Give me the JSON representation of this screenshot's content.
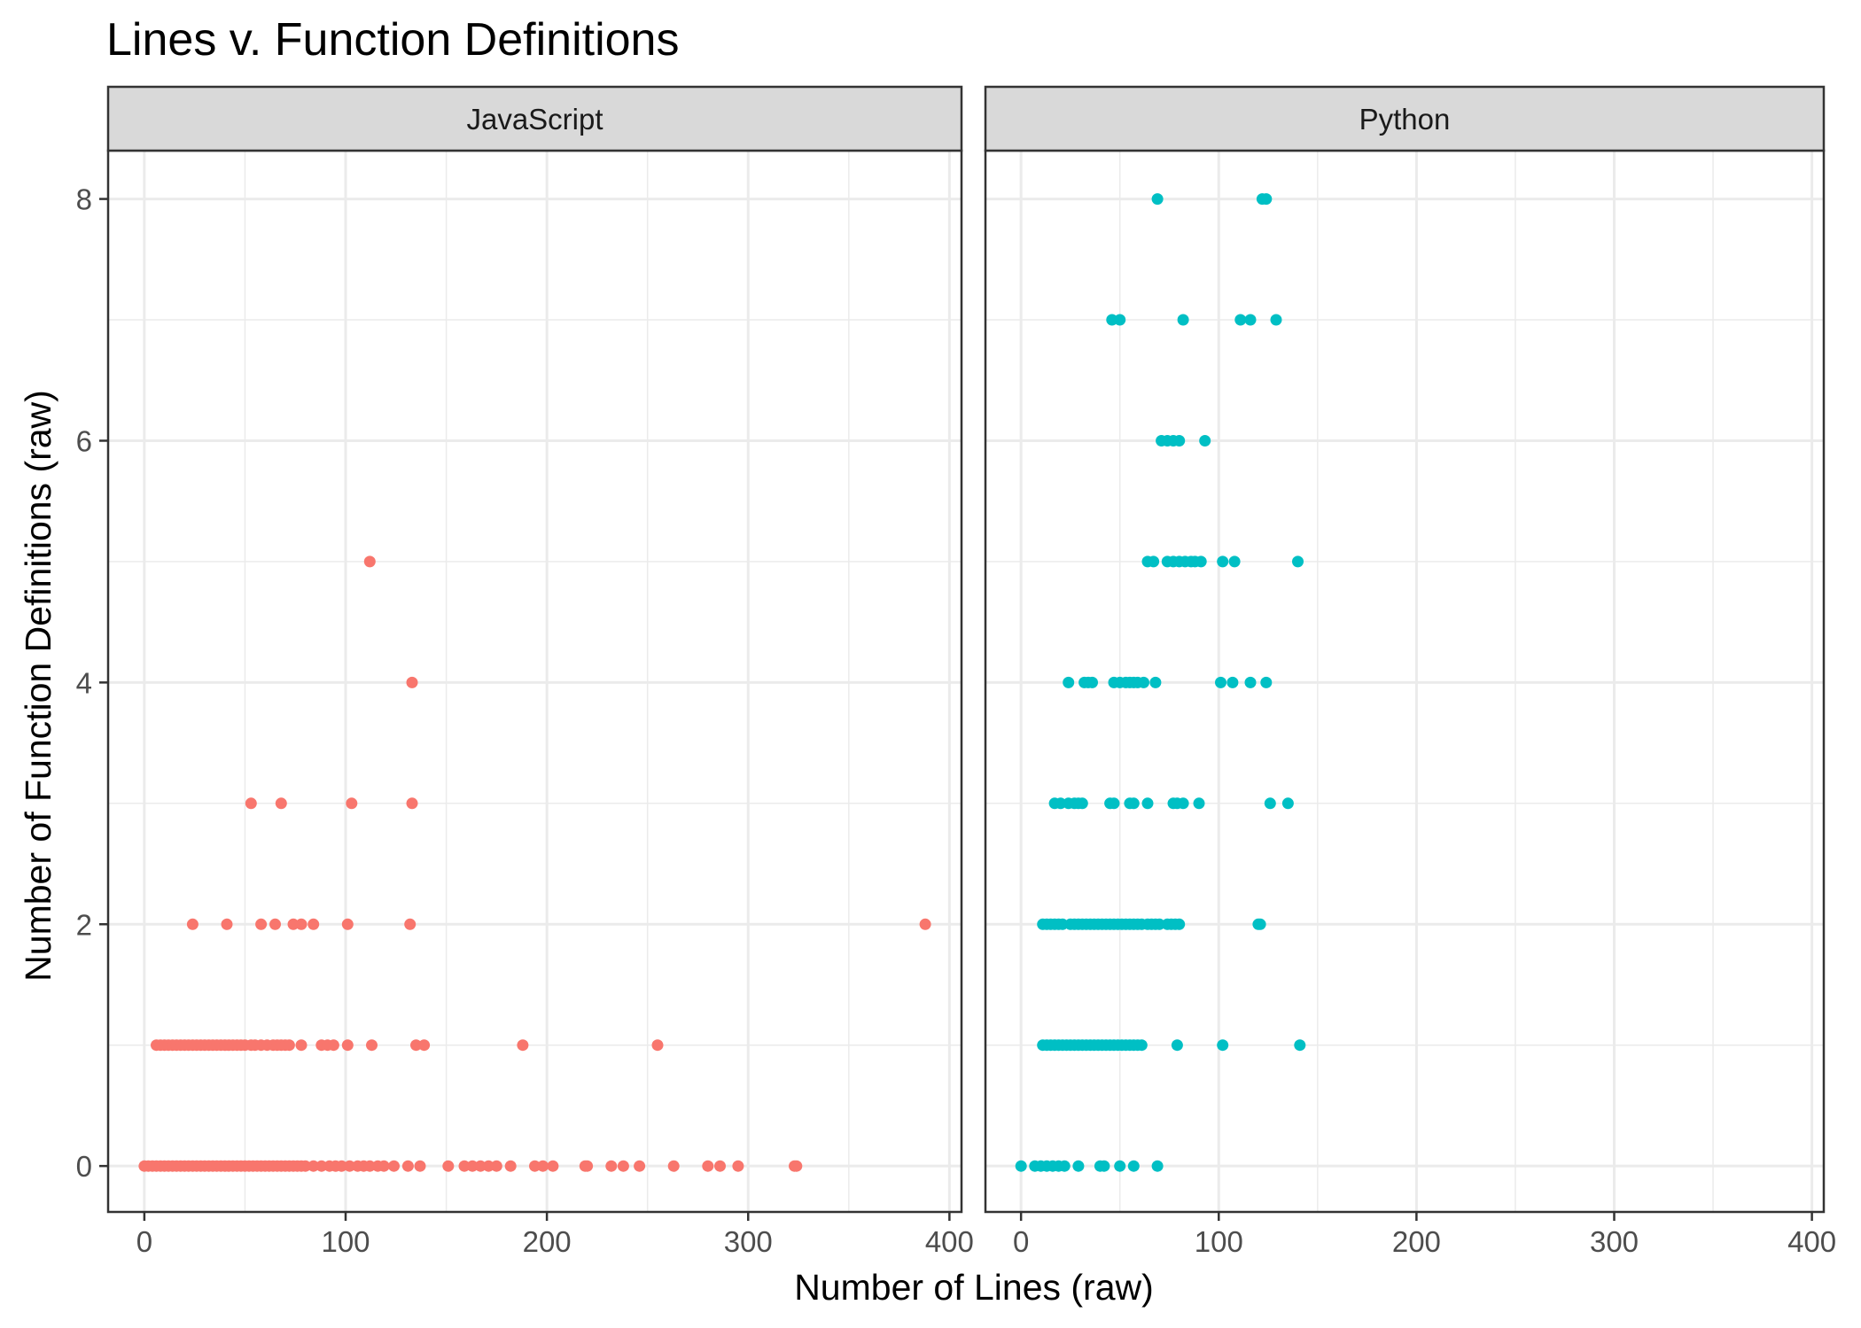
{
  "chart_data": {
    "type": "scatter",
    "title": "Lines v. Function Definitions",
    "xlabel": "Number of Lines (raw)",
    "ylabel": "Number of Function Definitions (raw)",
    "xlim": [
      -18,
      406
    ],
    "ylim": [
      -0.38,
      8.4
    ],
    "x_ticks": [
      "0",
      "100",
      "200",
      "300",
      "400"
    ],
    "y_ticks": [
      "0",
      "2",
      "4",
      "6",
      "8"
    ],
    "grid": true,
    "facets": [
      {
        "name": "JavaScript",
        "color": "#F8766D",
        "points": [
          [
            0,
            0
          ],
          [
            2,
            0
          ],
          [
            4,
            0
          ],
          [
            6,
            0
          ],
          [
            8,
            0
          ],
          [
            10,
            0
          ],
          [
            12,
            0
          ],
          [
            14,
            0
          ],
          [
            16,
            0
          ],
          [
            18,
            0
          ],
          [
            20,
            0
          ],
          [
            22,
            0
          ],
          [
            24,
            0
          ],
          [
            26,
            0
          ],
          [
            28,
            0
          ],
          [
            30,
            0
          ],
          [
            32,
            0
          ],
          [
            34,
            0
          ],
          [
            36,
            0
          ],
          [
            38,
            0
          ],
          [
            40,
            0
          ],
          [
            42,
            0
          ],
          [
            44,
            0
          ],
          [
            46,
            0
          ],
          [
            48,
            0
          ],
          [
            50,
            0
          ],
          [
            52,
            0
          ],
          [
            54,
            0
          ],
          [
            56,
            0
          ],
          [
            58,
            0
          ],
          [
            60,
            0
          ],
          [
            62,
            0
          ],
          [
            64,
            0
          ],
          [
            66,
            0
          ],
          [
            68,
            0
          ],
          [
            70,
            0
          ],
          [
            72,
            0
          ],
          [
            74,
            0
          ],
          [
            76,
            0
          ],
          [
            78,
            0
          ],
          [
            80,
            0
          ],
          [
            84,
            0
          ],
          [
            88,
            0
          ],
          [
            92,
            0
          ],
          [
            95,
            0
          ],
          [
            98,
            0
          ],
          [
            102,
            0
          ],
          [
            106,
            0
          ],
          [
            109,
            0
          ],
          [
            112,
            0
          ],
          [
            116,
            0
          ],
          [
            119,
            0
          ],
          [
            124,
            0
          ],
          [
            131,
            0
          ],
          [
            137,
            0
          ],
          [
            151,
            0
          ],
          [
            159,
            0
          ],
          [
            163,
            0
          ],
          [
            167,
            0
          ],
          [
            171,
            0
          ],
          [
            175,
            0
          ],
          [
            182,
            0
          ],
          [
            194,
            0
          ],
          [
            198,
            0
          ],
          [
            203,
            0
          ],
          [
            219,
            0
          ],
          [
            220,
            0
          ],
          [
            232,
            0
          ],
          [
            238,
            0
          ],
          [
            246,
            0
          ],
          [
            263,
            0
          ],
          [
            280,
            0
          ],
          [
            286,
            0
          ],
          [
            295,
            0
          ],
          [
            323,
            0
          ],
          [
            324,
            0
          ],
          [
            6,
            1
          ],
          [
            8,
            1
          ],
          [
            10,
            1
          ],
          [
            12,
            1
          ],
          [
            14,
            1
          ],
          [
            16,
            1
          ],
          [
            18,
            1
          ],
          [
            20,
            1
          ],
          [
            22,
            1
          ],
          [
            24,
            1
          ],
          [
            26,
            1
          ],
          [
            28,
            1
          ],
          [
            30,
            1
          ],
          [
            32,
            1
          ],
          [
            34,
            1
          ],
          [
            36,
            1
          ],
          [
            38,
            1
          ],
          [
            40,
            1
          ],
          [
            42,
            1
          ],
          [
            44,
            1
          ],
          [
            46,
            1
          ],
          [
            48,
            1
          ],
          [
            50,
            1
          ],
          [
            53,
            1
          ],
          [
            55,
            1
          ],
          [
            58,
            1
          ],
          [
            61,
            1
          ],
          [
            64,
            1
          ],
          [
            66,
            1
          ],
          [
            68,
            1
          ],
          [
            70,
            1
          ],
          [
            72,
            1
          ],
          [
            78,
            1
          ],
          [
            88,
            1
          ],
          [
            91,
            1
          ],
          [
            94,
            1
          ],
          [
            101,
            1
          ],
          [
            113,
            1
          ],
          [
            135,
            1
          ],
          [
            139,
            1
          ],
          [
            188,
            1
          ],
          [
            255,
            1
          ],
          [
            24,
            2
          ],
          [
            41,
            2
          ],
          [
            58,
            2
          ],
          [
            65,
            2
          ],
          [
            74,
            2
          ],
          [
            78,
            2
          ],
          [
            84,
            2
          ],
          [
            101,
            2
          ],
          [
            132,
            2
          ],
          [
            388,
            2
          ],
          [
            53,
            3
          ],
          [
            68,
            3
          ],
          [
            103,
            3
          ],
          [
            133,
            3
          ],
          [
            133,
            4
          ],
          [
            112,
            5
          ]
        ]
      },
      {
        "name": "Python",
        "color": "#00BFC4",
        "points": [
          [
            0,
            0
          ],
          [
            7,
            0
          ],
          [
            10,
            0
          ],
          [
            13,
            0
          ],
          [
            16,
            0
          ],
          [
            19,
            0
          ],
          [
            22,
            0
          ],
          [
            29,
            0
          ],
          [
            40,
            0
          ],
          [
            42,
            0
          ],
          [
            50,
            0
          ],
          [
            57,
            0
          ],
          [
            69,
            0
          ],
          [
            11,
            1
          ],
          [
            13,
            1
          ],
          [
            15,
            1
          ],
          [
            17,
            1
          ],
          [
            19,
            1
          ],
          [
            21,
            1
          ],
          [
            23,
            1
          ],
          [
            25,
            1
          ],
          [
            27,
            1
          ],
          [
            29,
            1
          ],
          [
            31,
            1
          ],
          [
            33,
            1
          ],
          [
            35,
            1
          ],
          [
            37,
            1
          ],
          [
            39,
            1
          ],
          [
            41,
            1
          ],
          [
            43,
            1
          ],
          [
            45,
            1
          ],
          [
            47,
            1
          ],
          [
            49,
            1
          ],
          [
            51,
            1
          ],
          [
            53,
            1
          ],
          [
            55,
            1
          ],
          [
            57,
            1
          ],
          [
            59,
            1
          ],
          [
            61,
            1
          ],
          [
            79,
            1
          ],
          [
            102,
            1
          ],
          [
            141,
            1
          ],
          [
            11,
            2
          ],
          [
            13,
            2
          ],
          [
            15,
            2
          ],
          [
            17,
            2
          ],
          [
            19,
            2
          ],
          [
            21,
            2
          ],
          [
            25,
            2
          ],
          [
            27,
            2
          ],
          [
            29,
            2
          ],
          [
            31,
            2
          ],
          [
            33,
            2
          ],
          [
            35,
            2
          ],
          [
            37,
            2
          ],
          [
            39,
            2
          ],
          [
            41,
            2
          ],
          [
            43,
            2
          ],
          [
            45,
            2
          ],
          [
            47,
            2
          ],
          [
            49,
            2
          ],
          [
            51,
            2
          ],
          [
            53,
            2
          ],
          [
            55,
            2
          ],
          [
            57,
            2
          ],
          [
            59,
            2
          ],
          [
            61,
            2
          ],
          [
            64,
            2
          ],
          [
            66,
            2
          ],
          [
            68,
            2
          ],
          [
            70,
            2
          ],
          [
            74,
            2
          ],
          [
            76,
            2
          ],
          [
            78,
            2
          ],
          [
            80,
            2
          ],
          [
            120,
            2
          ],
          [
            121,
            2
          ],
          [
            17,
            3
          ],
          [
            20,
            3
          ],
          [
            24,
            3
          ],
          [
            27,
            3
          ],
          [
            29,
            3
          ],
          [
            31,
            3
          ],
          [
            45,
            3
          ],
          [
            47,
            3
          ],
          [
            55,
            3
          ],
          [
            57,
            3
          ],
          [
            64,
            3
          ],
          [
            77,
            3
          ],
          [
            79,
            3
          ],
          [
            82,
            3
          ],
          [
            90,
            3
          ],
          [
            126,
            3
          ],
          [
            135,
            3
          ],
          [
            24,
            4
          ],
          [
            32,
            4
          ],
          [
            34,
            4
          ],
          [
            36,
            4
          ],
          [
            47,
            4
          ],
          [
            50,
            4
          ],
          [
            53,
            4
          ],
          [
            55,
            4
          ],
          [
            57,
            4
          ],
          [
            59,
            4
          ],
          [
            62,
            4
          ],
          [
            68,
            4
          ],
          [
            101,
            4
          ],
          [
            107,
            4
          ],
          [
            116,
            4
          ],
          [
            124,
            4
          ],
          [
            64,
            5
          ],
          [
            67,
            5
          ],
          [
            74,
            5
          ],
          [
            77,
            5
          ],
          [
            80,
            5
          ],
          [
            83,
            5
          ],
          [
            86,
            5
          ],
          [
            88,
            5
          ],
          [
            91,
            5
          ],
          [
            102,
            5
          ],
          [
            108,
            5
          ],
          [
            140,
            5
          ],
          [
            71,
            6
          ],
          [
            74,
            6
          ],
          [
            77,
            6
          ],
          [
            80,
            6
          ],
          [
            93,
            6
          ],
          [
            46,
            7
          ],
          [
            50,
            7
          ],
          [
            82,
            7
          ],
          [
            111,
            7
          ],
          [
            116,
            7
          ],
          [
            129,
            7
          ],
          [
            69,
            8
          ],
          [
            122,
            8
          ],
          [
            124,
            8
          ]
        ]
      }
    ]
  }
}
